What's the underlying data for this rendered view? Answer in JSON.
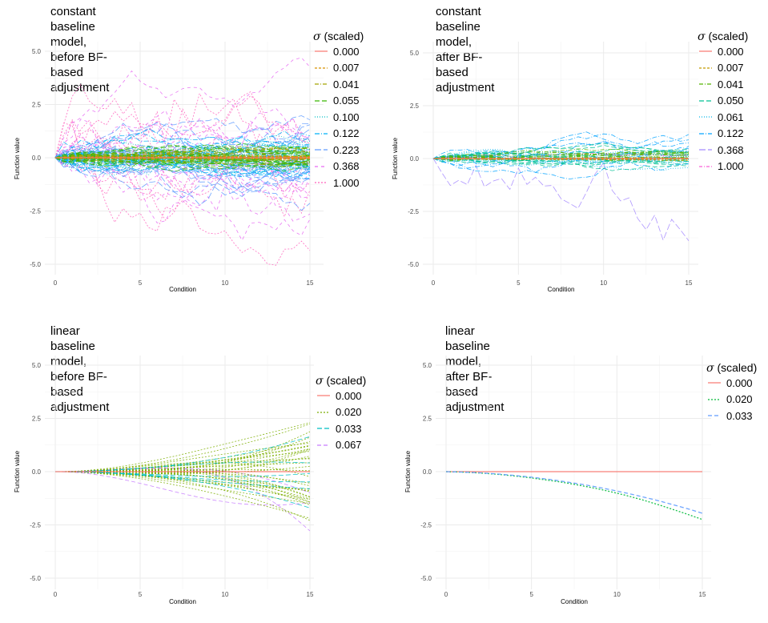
{
  "chart_data": [
    {
      "type": "line",
      "title": "constant baseline model,\nbefore BF-based adjustment",
      "xlabel": "Condition",
      "ylabel": "Function value",
      "xlim": [
        0,
        15
      ],
      "ylim": [
        -5.0,
        5.0
      ],
      "xticks": [
        "0",
        "5",
        "10",
        "15"
      ],
      "yticks": [
        "5.0",
        "2.5",
        "0.0",
        "-2.5",
        "-5.0"
      ],
      "legend_symbol": "σ",
      "legend_title": "(scaled)",
      "series": [
        {
          "name": "0.000",
          "color": "#f8766d",
          "dash": "solid",
          "lines": 1,
          "final_spread": 0.0
        },
        {
          "name": "0.007",
          "color": "#d89000",
          "dash": "3,2",
          "lines": 8,
          "final_spread": 0.05
        },
        {
          "name": "0.041",
          "color": "#a3a500",
          "dash": "5,2,1,2",
          "lines": 12,
          "final_spread": 0.25
        },
        {
          "name": "0.055",
          "color": "#39b600",
          "dash": "6,3",
          "lines": 25,
          "final_spread": 0.35
        },
        {
          "name": "0.100",
          "color": "#00bfc4",
          "dash": "1,2",
          "lines": 20,
          "final_spread": 0.6
        },
        {
          "name": "0.122",
          "color": "#00b0f6",
          "dash": "6,2,1,2",
          "lines": 20,
          "final_spread": 0.75
        },
        {
          "name": "0.223",
          "color": "#619cff",
          "dash": "8,3",
          "lines": 18,
          "final_spread": 1.2
        },
        {
          "name": "0.368",
          "color": "#e76bf3",
          "dash": "4,4",
          "lines": 14,
          "final_spread": 1.9
        },
        {
          "name": "1.000",
          "color": "#ff62bc",
          "dash": "2,2",
          "lines": 8,
          "final_spread": 3.2
        }
      ]
    },
    {
      "type": "line",
      "title": "constant baseline model,\nafter BF-based adjustment",
      "xlabel": "Condition",
      "ylabel": "Function value",
      "xlim": [
        0,
        15
      ],
      "ylim": [
        -5.0,
        5.0
      ],
      "xticks": [
        "0",
        "5",
        "10",
        "15"
      ],
      "yticks": [
        "5.0",
        "2.5",
        "0.0",
        "-2.5",
        "-5.0"
      ],
      "legend_symbol": "σ",
      "legend_title": "(scaled)",
      "series": [
        {
          "name": "0.000",
          "color": "#f8766d",
          "dash": "solid",
          "lines": 1,
          "final_spread": 0.0
        },
        {
          "name": "0.007",
          "color": "#c49a00",
          "dash": "3,2",
          "lines": 6,
          "final_spread": 0.05
        },
        {
          "name": "0.041",
          "color": "#53b400",
          "dash": "5,2,1,2",
          "lines": 10,
          "final_spread": 0.2
        },
        {
          "name": "0.050",
          "color": "#00c094",
          "dash": "6,3",
          "lines": 12,
          "final_spread": 0.3
        },
        {
          "name": "0.061",
          "color": "#00b6eb",
          "dash": "1,2",
          "lines": 10,
          "final_spread": 0.35
        },
        {
          "name": "0.122",
          "color": "#06a4ff",
          "dash": "6,2,1,2",
          "lines": 8,
          "final_spread": 0.6
        },
        {
          "name": "0.368",
          "color": "#a58aff",
          "dash": "8,3",
          "lines": 1,
          "final_spread": 2.8
        },
        {
          "name": "1.000",
          "color": "#fb61d7",
          "dash": "4,2,1,2",
          "lines": 1,
          "final_spread": 0.3
        }
      ]
    },
    {
      "type": "line",
      "title": "linear baseline model,\nbefore BF-based adjustment",
      "xlabel": "Condition",
      "ylabel": "Function value",
      "xlim": [
        0,
        15
      ],
      "ylim": [
        -5.0,
        5.0
      ],
      "xticks": [
        "0",
        "5",
        "10",
        "15"
      ],
      "yticks": [
        "5.0",
        "2.5",
        "0.0",
        "-2.5",
        "-5.0"
      ],
      "legend_symbol": "σ",
      "legend_title": "(scaled)",
      "series": [
        {
          "name": "0.000",
          "color": "#f8766d",
          "dash": "solid",
          "lines": 1,
          "final_spread": 0.0
        },
        {
          "name": "0.020",
          "color": "#7cae00",
          "dash": "2,2",
          "lines": 34,
          "final_spread": 1.5
        },
        {
          "name": "0.033",
          "color": "#00bfc4",
          "dash": "6,3",
          "lines": 6,
          "final_spread": 1.0
        },
        {
          "name": "0.067",
          "color": "#c77cff",
          "dash": "5,3",
          "lines": 3,
          "final_spread": 3.5
        }
      ]
    },
    {
      "type": "line",
      "title": "linear baseline model,\nafter BF-based adjustment",
      "xlabel": "Condition",
      "ylabel": "Function value",
      "xlim": [
        0,
        15
      ],
      "ylim": [
        -5.0,
        5.0
      ],
      "xticks": [
        "0",
        "5",
        "10",
        "15"
      ],
      "yticks": [
        "5.0",
        "2.5",
        "0.0",
        "-2.5",
        "-5.0"
      ],
      "legend_symbol": "σ",
      "legend_title": "(scaled)",
      "series": [
        {
          "name": "0.000",
          "color": "#f8766d",
          "dash": "solid",
          "lines": 1,
          "final_spread": 0.0
        },
        {
          "name": "0.020",
          "color": "#00ba38",
          "dash": "2,2",
          "lines": 1,
          "final_spread": 0.0
        },
        {
          "name": "0.033",
          "color": "#619cff",
          "dash": "5,3",
          "lines": 1,
          "final_spread": 0.0
        }
      ]
    }
  ]
}
